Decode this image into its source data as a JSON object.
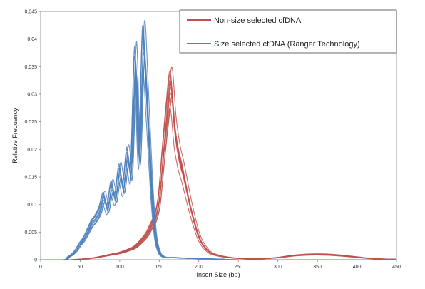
{
  "chart_data": {
    "type": "line",
    "title": "",
    "xlabel": "Insert Size (bp)",
    "ylabel": "Relative Frequency",
    "xlim": [
      0,
      450
    ],
    "ylim": [
      0,
      0.045
    ],
    "xticks": [
      "0",
      "50",
      "100",
      "150",
      "200",
      "250",
      "300",
      "350",
      "400",
      "450"
    ],
    "yticks": [
      "0",
      "0.005",
      "0.01",
      "0.015",
      "0.02",
      "0.025",
      "0.03",
      "0.035",
      "0.04",
      "0.045"
    ],
    "grid": false,
    "legend_position": "top-right",
    "series": [
      {
        "name": "Non-size selected cfDNA",
        "color": "#c0504d",
        "x": [
          0,
          30,
          40,
          50,
          60,
          70,
          80,
          90,
          100,
          110,
          120,
          130,
          135,
          140,
          145,
          150,
          155,
          160,
          165,
          170,
          175,
          180,
          190,
          200,
          210,
          220,
          240,
          260,
          280,
          300,
          320,
          340,
          360,
          380,
          400,
          420,
          450
        ],
        "values": [
          0,
          0,
          0,
          0.0001,
          0.0002,
          0.0004,
          0.0007,
          0.001,
          0.0013,
          0.0018,
          0.0025,
          0.004,
          0.005,
          0.0065,
          0.008,
          0.0115,
          0.02,
          0.028,
          0.0335,
          0.025,
          0.02,
          0.017,
          0.01,
          0.0045,
          0.002,
          0.001,
          0.0004,
          0.0002,
          0.0002,
          0.0004,
          0.0008,
          0.001,
          0.001,
          0.0008,
          0.0005,
          0.0002,
          0.0001
        ]
      },
      {
        "name": "Size selected cfDNA (Ranger Technology)",
        "color": "#4f81bd",
        "x": [
          0,
          30,
          35,
          40,
          45,
          50,
          55,
          60,
          65,
          70,
          75,
          80,
          85,
          90,
          95,
          100,
          105,
          110,
          115,
          120,
          125,
          130,
          135,
          140,
          145,
          150,
          155,
          160,
          170,
          180,
          200,
          230,
          250,
          450
        ],
        "values": [
          0,
          0,
          0.0005,
          0.001,
          0.0018,
          0.003,
          0.004,
          0.0055,
          0.007,
          0.008,
          0.0095,
          0.012,
          0.01,
          0.014,
          0.012,
          0.017,
          0.014,
          0.02,
          0.0175,
          0.038,
          0.02,
          0.0415,
          0.03,
          0.015,
          0.005,
          0.0015,
          0.0006,
          0.0004,
          0.0004,
          0.0003,
          0.0002,
          0.0001,
          0,
          0
        ]
      }
    ]
  }
}
